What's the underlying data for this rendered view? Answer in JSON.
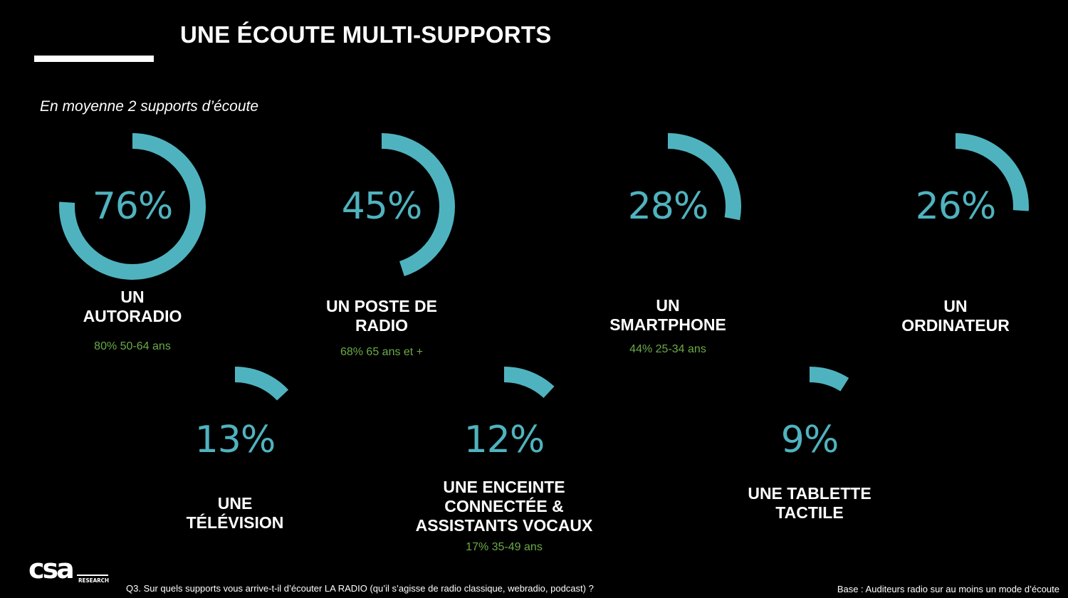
{
  "header": {
    "title": "UNE ÉCOUTE MULTI-SUPPORTS",
    "subtitle": "En moyenne 2 supports d’écoute"
  },
  "colors": {
    "background": "#000000",
    "arc": "#4fb3bf",
    "text": "#ffffff",
    "highlight": "#6aab47"
  },
  "chart_data": {
    "type": "radial-gauge",
    "unit": "%",
    "items": [
      {
        "label_lines": [
          "UN",
          "AUTORADIO"
        ],
        "value": 76,
        "value_label": "76%",
        "highlight": "80% 50-64 ans"
      },
      {
        "label_lines": [
          "UN POSTE DE",
          "RADIO"
        ],
        "value": 45,
        "value_label": "45%",
        "highlight": "68% 65 ans et +"
      },
      {
        "label_lines": [
          "UN",
          "SMARTPHONE"
        ],
        "value": 28,
        "value_label": "28%",
        "highlight": "44% 25-34 ans"
      },
      {
        "label_lines": [
          "UN",
          "ORDINATEUR"
        ],
        "value": 26,
        "value_label": "26%",
        "highlight": ""
      },
      {
        "label_lines": [
          "UNE",
          "TÉLÉVISION"
        ],
        "value": 13,
        "value_label": "13%",
        "highlight": ""
      },
      {
        "label_lines": [
          "UNE ENCEINTE",
          "CONNECTÉE &",
          "ASSISTANTS VOCAUX"
        ],
        "value": 12,
        "value_label": "12%",
        "highlight": "17% 35-49 ans"
      },
      {
        "label_lines": [
          "UNE TABLETTE",
          "TACTILE"
        ],
        "value": 9,
        "value_label": "9%",
        "highlight": ""
      }
    ]
  },
  "footer": {
    "question": "Q3. Sur quels supports vous arrive-t-il d’écouter LA RADIO (qu’il s’agisse de radio classique, webradio, podcast) ?",
    "base": "Base : Auditeurs radio sur au moins un mode d’écoute",
    "logo_text": "csa",
    "logo_subtext": "RESEARCH"
  }
}
